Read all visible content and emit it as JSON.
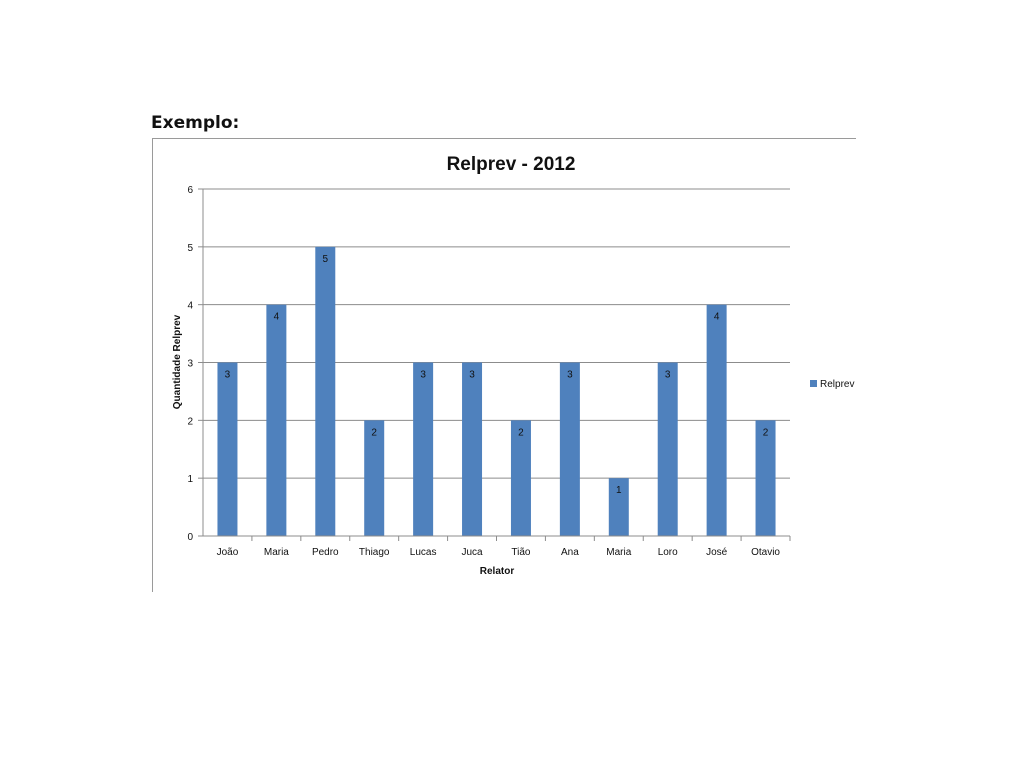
{
  "heading": "Exemplo:",
  "colors": {
    "bar": "#4f81bd",
    "grid": "#8c8c8c",
    "axis": "#8c8c8c",
    "text": "#111111"
  },
  "chart_data": {
    "type": "bar",
    "title": "Relprev - 2012",
    "xlabel": "Relator",
    "ylabel": "Quantidade Relprev",
    "categories": [
      "João",
      "Maria",
      "Pedro",
      "Thiago",
      "Lucas",
      "Juca",
      "Tião",
      "Ana",
      "Maria",
      "Loro",
      "José",
      "Otavio"
    ],
    "series": [
      {
        "name": "Relprev",
        "values": [
          3,
          4,
          5,
          2,
          3,
          3,
          2,
          3,
          1,
          3,
          4,
          2
        ]
      }
    ],
    "ylim": [
      0,
      6
    ],
    "yticks": [
      0,
      1,
      2,
      3,
      4,
      5,
      6
    ],
    "grid": true,
    "data_labels": true,
    "legend_position": "right"
  }
}
